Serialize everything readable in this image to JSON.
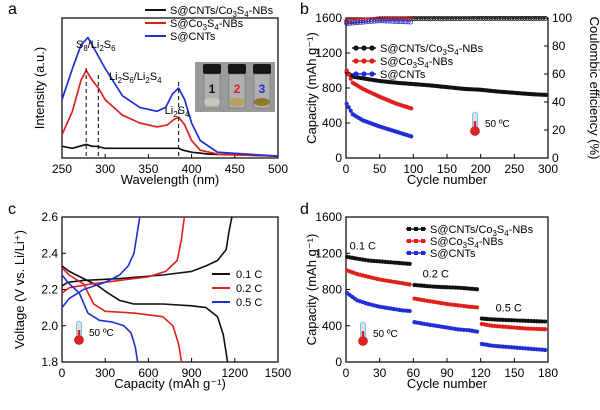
{
  "colors": {
    "black": "#111111",
    "red": "#e0201b",
    "blue": "#1f2fd6"
  },
  "chart_data": [
    {
      "panel": "a",
      "type": "line",
      "xlabel": "Wavelength (nm)",
      "ylabel": "Intensity (a.u.)",
      "xlim": [
        250,
        500
      ],
      "xticks": [
        250,
        300,
        350,
        400,
        450,
        500
      ],
      "yticks_shown": false,
      "legend": "top-right",
      "series": [
        {
          "name": "S@CNTs/Co3S4-NBs",
          "legend_label": "S@CNTs/Co₃S₄-NBs",
          "color": "#111111",
          "x": [
            250,
            262,
            270,
            278,
            285,
            290,
            300,
            320,
            340,
            360,
            380,
            385,
            390,
            400,
            420,
            500
          ],
          "y": [
            0.06,
            0.05,
            0.06,
            0.07,
            0.06,
            0.06,
            0.05,
            0.05,
            0.05,
            0.05,
            0.05,
            0.05,
            0.04,
            0.03,
            0.02,
            0.01
          ]
        },
        {
          "name": "S@Co3S4-NBs",
          "legend_label": "S@Co₃S₄-NBs",
          "color": "#e0201b",
          "x": [
            250,
            262,
            272,
            278,
            285,
            292,
            300,
            320,
            340,
            360,
            372,
            380,
            385,
            392,
            400,
            410,
            430,
            500
          ],
          "y": [
            0.12,
            0.24,
            0.4,
            0.45,
            0.4,
            0.36,
            0.3,
            0.22,
            0.18,
            0.16,
            0.17,
            0.2,
            0.21,
            0.17,
            0.09,
            0.04,
            0.02,
            0.01
          ]
        },
        {
          "name": "S@CNTs",
          "legend_label": "S@CNTs",
          "color": "#1f2fd6",
          "x": [
            250,
            262,
            272,
            280,
            290,
            300,
            320,
            340,
            360,
            370,
            378,
            385,
            392,
            400,
            410,
            430,
            500
          ],
          "y": [
            0.3,
            0.46,
            0.58,
            0.62,
            0.54,
            0.46,
            0.32,
            0.26,
            0.24,
            0.26,
            0.33,
            0.36,
            0.3,
            0.18,
            0.09,
            0.03,
            0.01
          ]
        }
      ],
      "annotations": [
        {
          "label": "S8/Li2S6",
          "x": 278
        },
        {
          "label": "Li2S6/Li2S4",
          "x": 292
        },
        {
          "label": "Li2S4",
          "x": 385
        }
      ],
      "inset_vial_labels": [
        "1",
        "2",
        "3"
      ]
    },
    {
      "panel": "b",
      "type": "scatter",
      "xlabel": "Cycle number",
      "ylabel": "Capacity (mAh g⁻¹)",
      "y2label": "Coulombic efficiency (%)",
      "xlim": [
        0,
        300
      ],
      "ylim": [
        0,
        1600
      ],
      "y2lim": [
        0,
        100
      ],
      "xticks": [
        0,
        50,
        100,
        150,
        200,
        250,
        300
      ],
      "yticks": [
        0,
        400,
        800,
        1200,
        1600
      ],
      "y2ticks": [
        0,
        20,
        40,
        60,
        80,
        100
      ],
      "legend": "top-center",
      "temperature_note": "50 ºC",
      "series": [
        {
          "name": "S@CNTs/Co3S4-NBs",
          "legend_label": "S@CNTs/Co₃S₄-NBs",
          "color": "#111111",
          "x": [
            1,
            10,
            25,
            50,
            75,
            100,
            125,
            150,
            175,
            200,
            225,
            250,
            275,
            300
          ],
          "y": [
            980,
            930,
            910,
            880,
            860,
            845,
            830,
            810,
            790,
            780,
            760,
            745,
            730,
            720
          ],
          "efficiency_x": [
            1,
            50,
            100,
            150,
            200,
            250,
            300
          ],
          "efficiency": [
            97,
            99.5,
            99.6,
            99.6,
            99.7,
            99.7,
            99.7
          ]
        },
        {
          "name": "S@Co3S4-NBs",
          "legend_label": "S@Co₃S₄-NBs",
          "color": "#e0201b",
          "x": [
            1,
            10,
            25,
            50,
            75,
            100
          ],
          "y": [
            1000,
            860,
            790,
            700,
            620,
            560
          ],
          "efficiency_x": [
            1,
            50,
            100
          ],
          "efficiency": [
            98,
            99.2,
            99.3
          ]
        },
        {
          "name": "S@CNTs",
          "legend_label": "S@CNTs",
          "color": "#1f2fd6",
          "x": [
            1,
            10,
            25,
            50,
            75,
            100
          ],
          "y": [
            620,
            500,
            430,
            360,
            300,
            240
          ],
          "efficiency_x": [
            1,
            50,
            100
          ],
          "efficiency": [
            96,
            98,
            97
          ]
        }
      ]
    },
    {
      "panel": "c",
      "type": "line",
      "xlabel": "Capacity (mAh g⁻¹)",
      "ylabel": "Voltage (V vs. Li/Li⁺)",
      "xlim": [
        0,
        1500
      ],
      "ylim": [
        1.8,
        2.6
      ],
      "xticks": [
        0,
        300,
        600,
        900,
        1200,
        1500
      ],
      "yticks": [
        1.8,
        2.0,
        2.2,
        2.4,
        2.6
      ],
      "legend": "right",
      "temperature_note": "50 ºC",
      "series": [
        {
          "name": "0.1 C",
          "color": "#111111",
          "discharge_x": [
            0,
            50,
            150,
            250,
            320,
            400,
            500,
            700,
            900,
            1000,
            1080,
            1120,
            1150
          ],
          "discharge_y": [
            2.33,
            2.3,
            2.26,
            2.22,
            2.18,
            2.14,
            2.12,
            2.12,
            2.11,
            2.1,
            2.05,
            1.95,
            1.8
          ],
          "charge_x": [
            0,
            40,
            150,
            400,
            700,
            900,
            1000,
            1080,
            1140,
            1160,
            1180
          ],
          "charge_y": [
            2.22,
            2.24,
            2.25,
            2.26,
            2.28,
            2.3,
            2.33,
            2.36,
            2.42,
            2.52,
            2.6
          ]
        },
        {
          "name": "0.2 C",
          "color": "#e0201b",
          "discharge_x": [
            0,
            50,
            150,
            220,
            300,
            500,
            700,
            770,
            810,
            830
          ],
          "discharge_y": [
            2.32,
            2.28,
            2.23,
            2.12,
            2.08,
            2.07,
            2.05,
            2.0,
            1.9,
            1.8
          ],
          "charge_x": [
            0,
            50,
            200,
            400,
            600,
            720,
            800,
            830,
            850
          ],
          "charge_y": [
            2.18,
            2.21,
            2.23,
            2.25,
            2.27,
            2.3,
            2.36,
            2.48,
            2.6
          ]
        },
        {
          "name": "0.5 C",
          "color": "#1f2fd6",
          "discharge_x": [
            0,
            40,
            120,
            180,
            260,
            350,
            430,
            480,
            510,
            525
          ],
          "discharge_y": [
            2.28,
            2.24,
            2.18,
            2.07,
            2.03,
            2.02,
            2.0,
            1.96,
            1.88,
            1.8
          ],
          "charge_x": [
            0,
            50,
            150,
            300,
            400,
            460,
            500,
            520,
            540
          ],
          "charge_y": [
            2.1,
            2.15,
            2.2,
            2.24,
            2.28,
            2.33,
            2.4,
            2.5,
            2.6
          ]
        }
      ]
    },
    {
      "panel": "d",
      "type": "scatter",
      "xlabel": "Cycle number",
      "ylabel": "Capacity (mAh g⁻¹)",
      "xlim": [
        0,
        180
      ],
      "ylim": [
        0,
        1600
      ],
      "xticks": [
        0,
        30,
        60,
        90,
        120,
        150,
        180
      ],
      "yticks": [
        0,
        400,
        800,
        1200,
        1600
      ],
      "legend": "top-center",
      "temperature_note": "50 ºC",
      "rate_labels": [
        {
          "label": "0.1 C",
          "cycle": 15
        },
        {
          "label": "0.2 C",
          "cycle": 80
        },
        {
          "label": "0.5 C",
          "cycle": 145
        }
      ],
      "series": [
        {
          "name": "S@CNTs/Co3S4-NBs",
          "legend_label": "S@CNTs/Co₃S₄-NBs",
          "color": "#111111",
          "x": [
            1,
            10,
            20,
            30,
            40,
            50,
            59,
            61,
            70,
            80,
            90,
            100,
            110,
            119,
            121,
            130,
            140,
            150,
            160,
            170,
            180
          ],
          "y": [
            1160,
            1140,
            1120,
            1110,
            1100,
            1090,
            1080,
            850,
            840,
            830,
            825,
            820,
            810,
            800,
            480,
            470,
            465,
            460,
            455,
            450,
            445
          ]
        },
        {
          "name": "S@Co3S4-NBs",
          "legend_label": "S@Co₃S₄-NBs",
          "color": "#e0201b",
          "x": [
            1,
            10,
            20,
            30,
            40,
            50,
            59,
            61,
            70,
            80,
            90,
            100,
            110,
            119,
            121,
            130,
            140,
            150,
            160,
            170,
            180
          ],
          "y": [
            1010,
            970,
            940,
            910,
            890,
            870,
            850,
            700,
            680,
            660,
            640,
            625,
            610,
            600,
            420,
            400,
            390,
            380,
            370,
            365,
            360
          ]
        },
        {
          "name": "S@CNTs",
          "legend_label": "S@CNTs",
          "color": "#1f2fd6",
          "x": [
            1,
            10,
            20,
            30,
            40,
            50,
            59,
            61,
            70,
            80,
            90,
            100,
            110,
            119,
            121,
            130,
            140,
            150,
            160,
            170,
            180
          ],
          "y": [
            760,
            680,
            640,
            610,
            590,
            570,
            560,
            440,
            420,
            400,
            380,
            360,
            350,
            330,
            200,
            180,
            170,
            160,
            150,
            140,
            130
          ]
        }
      ]
    }
  ],
  "panel_letters": [
    "a",
    "b",
    "c",
    "d"
  ]
}
